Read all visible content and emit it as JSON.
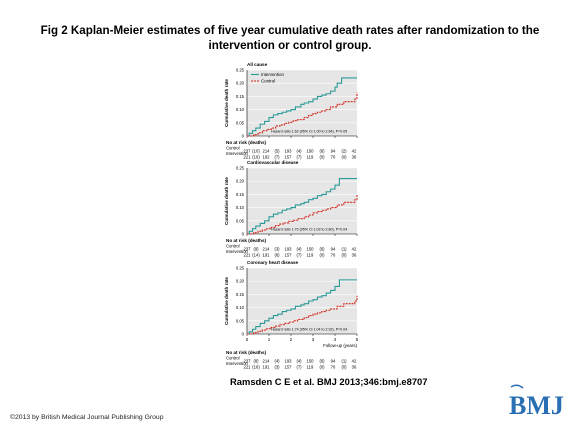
{
  "title": "Fig 2 Kaplan-Meier estimates of five year cumulative death rates after randomization to the intervention or control group.",
  "citation": "Ramsden C E et al. BMJ 2013;346:bmj.e8707",
  "copyright": "©2013 by British Medical Journal Publishing Group",
  "logo_text": "BMJ",
  "colors": {
    "intervention": "#2a9a96",
    "control": "#d42a1e",
    "panel": "#e6e6e6",
    "brand": "#2a6fb4"
  },
  "shared": {
    "ylabel": "Cumulative death rate",
    "xlabel": "Follow-up (years)",
    "xticks": [
      "0",
      "1",
      "2",
      "3",
      "4",
      "5"
    ],
    "yticks": [
      "0",
      "0.05",
      "0.10",
      "0.15",
      "0.20",
      "0.25"
    ],
    "at_risk_title": "No at risk (deaths)",
    "at_risk_control_label": "Control",
    "at_risk_intervention_label": "Intervention"
  },
  "chart_data": [
    {
      "type": "line",
      "title": "All cause",
      "xlim": [
        0,
        5
      ],
      "ylim": [
        0,
        0.25
      ],
      "legend": [
        "Intervention",
        "Control"
      ],
      "legend_placement": "top-left",
      "annotation": "Hazard ratio 1.62 (95% CI 1.00 to 2.64), P=0.05",
      "series": [
        {
          "name": "Intervention",
          "x": [
            0,
            0.1,
            0.25,
            0.4,
            0.6,
            0.8,
            1.0,
            1.2,
            1.4,
            1.6,
            1.8,
            2.0,
            2.2,
            2.45,
            2.6,
            2.8,
            3.0,
            3.2,
            3.4,
            3.6,
            3.8,
            4.0,
            4.1,
            4.3,
            5.0
          ],
          "y": [
            0,
            0.01,
            0.02,
            0.03,
            0.045,
            0.055,
            0.07,
            0.08,
            0.085,
            0.09,
            0.095,
            0.1,
            0.11,
            0.12,
            0.125,
            0.13,
            0.14,
            0.15,
            0.155,
            0.16,
            0.17,
            0.185,
            0.2,
            0.22,
            0.22
          ]
        },
        {
          "name": "Control",
          "x": [
            0,
            0.3,
            0.5,
            0.7,
            0.9,
            1.1,
            1.3,
            1.5,
            1.7,
            1.9,
            2.1,
            2.3,
            2.6,
            2.8,
            3.0,
            3.2,
            3.4,
            3.6,
            3.8,
            4.1,
            4.4,
            4.9,
            5.0
          ],
          "y": [
            0,
            0.005,
            0.012,
            0.02,
            0.025,
            0.03,
            0.038,
            0.042,
            0.048,
            0.052,
            0.058,
            0.062,
            0.07,
            0.078,
            0.085,
            0.09,
            0.095,
            0.1,
            0.11,
            0.12,
            0.13,
            0.14,
            0.165
          ]
        }
      ],
      "at_risk": {
        "control": [
          "237",
          "(10)",
          "214",
          "(5)",
          "193",
          "(4)",
          "150",
          "(6)",
          "94",
          "(2)",
          "42"
        ],
        "intervention": [
          "221",
          "(16)",
          "192",
          "(7)",
          "157",
          "(7)",
          "119",
          "(0)",
          "70",
          "(0)",
          "36"
        ]
      }
    },
    {
      "type": "line",
      "title": "Cardiovascular disease",
      "xlim": [
        0,
        5
      ],
      "ylim": [
        0,
        0.25
      ],
      "annotation": "Hazard ratio 1.70 (95% CI 1.03 to 2.80), P=0.04",
      "series": [
        {
          "name": "Intervention",
          "x": [
            0,
            0.1,
            0.25,
            0.4,
            0.6,
            0.8,
            1.0,
            1.2,
            1.4,
            1.6,
            1.8,
            2.0,
            2.2,
            2.45,
            2.6,
            2.8,
            3.0,
            3.2,
            3.4,
            3.6,
            3.8,
            4.0,
            4.2,
            5.0
          ],
          "y": [
            0,
            0.01,
            0.02,
            0.03,
            0.04,
            0.05,
            0.065,
            0.075,
            0.08,
            0.09,
            0.095,
            0.1,
            0.11,
            0.115,
            0.12,
            0.13,
            0.135,
            0.145,
            0.15,
            0.16,
            0.17,
            0.185,
            0.21,
            0.21
          ]
        },
        {
          "name": "Control",
          "x": [
            0,
            0.3,
            0.5,
            0.7,
            0.9,
            1.1,
            1.3,
            1.5,
            1.7,
            1.9,
            2.1,
            2.3,
            2.6,
            2.8,
            3.0,
            3.2,
            3.4,
            3.6,
            3.8,
            4.1,
            4.4,
            4.9,
            5.0
          ],
          "y": [
            0,
            0.005,
            0.01,
            0.015,
            0.02,
            0.025,
            0.032,
            0.038,
            0.042,
            0.048,
            0.052,
            0.058,
            0.065,
            0.072,
            0.08,
            0.085,
            0.09,
            0.095,
            0.1,
            0.11,
            0.12,
            0.13,
            0.15
          ]
        }
      ],
      "at_risk": {
        "control": [
          "237",
          "(9)",
          "214",
          "(3)",
          "193",
          "(4)",
          "150",
          "(6)",
          "94",
          "(1)",
          "42"
        ],
        "intervention": [
          "221",
          "(14)",
          "191",
          "(6)",
          "157",
          "(7)",
          "119",
          "(0)",
          "70",
          "(0)",
          "36"
        ]
      }
    },
    {
      "type": "line",
      "title": "Coronary heart disease",
      "xlim": [
        0,
        5
      ],
      "ylim": [
        0,
        0.25
      ],
      "annotation": "Hazard ratio 1.74 (95% CI 1.04 to 2.92), P=0.04",
      "series": [
        {
          "name": "Intervention",
          "x": [
            0,
            0.1,
            0.25,
            0.4,
            0.6,
            0.8,
            1.0,
            1.2,
            1.4,
            1.6,
            1.8,
            2.0,
            2.2,
            2.45,
            2.6,
            2.8,
            3.0,
            3.2,
            3.4,
            3.6,
            3.8,
            4.0,
            4.2,
            5.0
          ],
          "y": [
            0,
            0.008,
            0.018,
            0.028,
            0.04,
            0.05,
            0.06,
            0.07,
            0.075,
            0.085,
            0.09,
            0.095,
            0.105,
            0.11,
            0.115,
            0.125,
            0.13,
            0.14,
            0.145,
            0.155,
            0.165,
            0.18,
            0.205,
            0.205
          ]
        },
        {
          "name": "Control",
          "x": [
            0,
            0.3,
            0.5,
            0.7,
            0.9,
            1.1,
            1.3,
            1.5,
            1.7,
            1.9,
            2.1,
            2.3,
            2.6,
            2.8,
            3.0,
            3.2,
            3.4,
            3.6,
            3.8,
            4.1,
            4.4,
            4.9,
            5.0
          ],
          "y": [
            0,
            0.005,
            0.01,
            0.015,
            0.02,
            0.025,
            0.03,
            0.035,
            0.04,
            0.045,
            0.05,
            0.055,
            0.062,
            0.07,
            0.075,
            0.08,
            0.085,
            0.09,
            0.095,
            0.105,
            0.115,
            0.125,
            0.145
          ]
        }
      ],
      "at_risk": {
        "control": [
          "237",
          "(8)",
          "214",
          "(4)",
          "193",
          "(4)",
          "150",
          "(6)",
          "94",
          "(1)",
          "42"
        ],
        "intervention": [
          "221",
          "(16)",
          "191",
          "(3)",
          "157",
          "(7)",
          "119",
          "(0)",
          "70",
          "(0)",
          "36"
        ]
      }
    }
  ]
}
